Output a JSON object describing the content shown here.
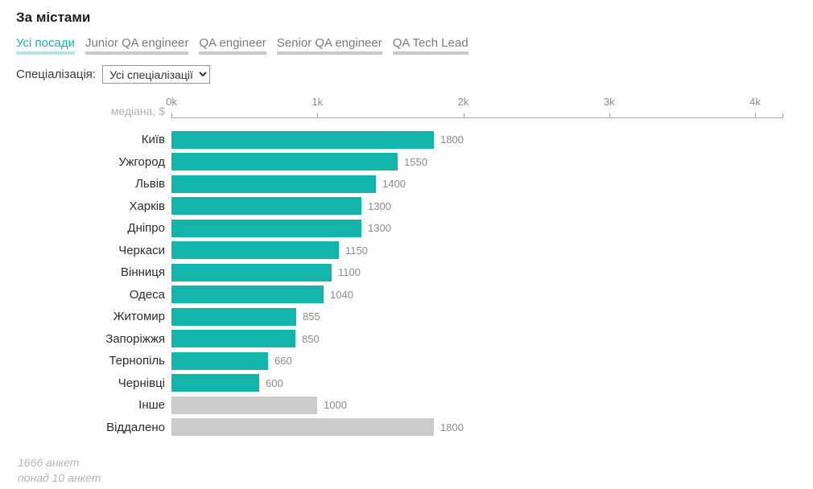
{
  "page": {
    "title": "За містами"
  },
  "tabs": [
    {
      "id": "all-positions",
      "label": "Усі посади",
      "active": true
    },
    {
      "id": "junior-qa-engineer",
      "label": "Junior QA engineer",
      "active": false
    },
    {
      "id": "qa-engineer",
      "label": "QA engineer",
      "active": false
    },
    {
      "id": "senior-qa-engineer",
      "label": "Senior QA engineer",
      "active": false
    },
    {
      "id": "qa-tech-lead",
      "label": "QA Tech Lead",
      "active": false
    }
  ],
  "filter": {
    "label": "Спеціалізація:",
    "selected": "Усі спеціалізації"
  },
  "chart_data": {
    "type": "bar",
    "orientation": "horizontal",
    "title": "За містами",
    "axis_label": "медіана, $",
    "x_ticks": [
      "0k",
      "1k",
      "2k",
      "3k",
      "4k"
    ],
    "xlim": [
      0,
      4000
    ],
    "grid": false,
    "bars": [
      {
        "label": "Київ",
        "value": 1800,
        "muted": false
      },
      {
        "label": "Ужгород",
        "value": 1550,
        "muted": false
      },
      {
        "label": "Львів",
        "value": 1400,
        "muted": false
      },
      {
        "label": "Харків",
        "value": 1300,
        "muted": false
      },
      {
        "label": "Дніпро",
        "value": 1300,
        "muted": false
      },
      {
        "label": "Черкаси",
        "value": 1150,
        "muted": false
      },
      {
        "label": "Вінниця",
        "value": 1100,
        "muted": false
      },
      {
        "label": "Одеса",
        "value": 1040,
        "muted": false
      },
      {
        "label": "Житомир",
        "value": 855,
        "muted": false
      },
      {
        "label": "Запоріжжя",
        "value": 850,
        "muted": false
      },
      {
        "label": "Тернопіль",
        "value": 660,
        "muted": false
      },
      {
        "label": "Чернівці",
        "value": 600,
        "muted": false
      },
      {
        "label": "Інше",
        "value": 1000,
        "muted": true
      },
      {
        "label": "Віддалено",
        "value": 1800,
        "muted": true
      }
    ]
  },
  "colors": {
    "bar": "#12b4ab",
    "muted_bar": "#cccccc",
    "active_tab": "#1db0a7",
    "active_tab_underline": "#b4e4e0",
    "inactive_tab": "#7b7b7b",
    "inactive_tab_underline": "#c9c9c9"
  },
  "footer": {
    "line1": "1666 анкет",
    "line2": "понад 10 анкет"
  }
}
